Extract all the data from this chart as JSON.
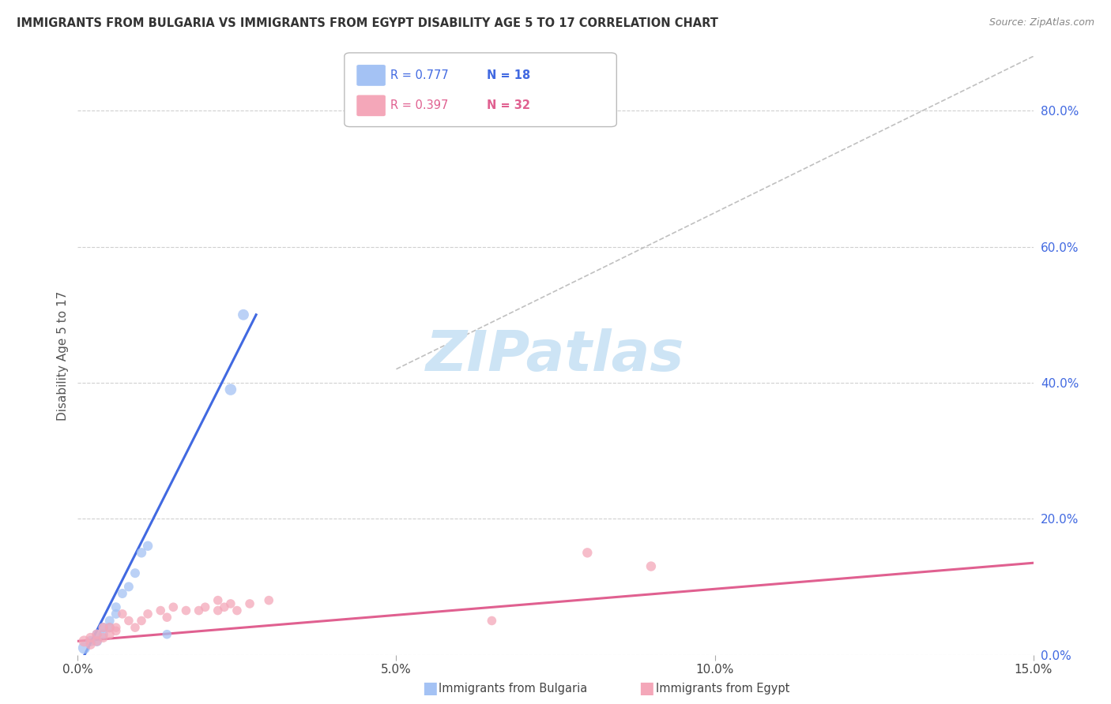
{
  "title": "IMMIGRANTS FROM BULGARIA VS IMMIGRANTS FROM EGYPT DISABILITY AGE 5 TO 17 CORRELATION CHART",
  "source": "Source: ZipAtlas.com",
  "ylabel": "Disability Age 5 to 17",
  "xlim": [
    0.0,
    0.15
  ],
  "ylim": [
    0.0,
    0.88
  ],
  "x_ticks": [
    0.0,
    0.05,
    0.1,
    0.15
  ],
  "x_tick_labels": [
    "0.0%",
    "5.0%",
    "10.0%",
    "15.0%"
  ],
  "y_ticks_right": [
    0.0,
    0.2,
    0.4,
    0.6,
    0.8
  ],
  "y_tick_labels_right": [
    "0.0%",
    "20.0%",
    "40.0%",
    "60.0%",
    "80.0%"
  ],
  "bulgaria_color": "#a4c2f4",
  "egypt_color": "#f4a7b9",
  "bulgaria_trend_color": "#4169e1",
  "egypt_trend_color": "#e06090",
  "diagonal_color": "#c0c0c0",
  "r_bulgaria": 0.777,
  "n_bulgaria": 18,
  "r_egypt": 0.397,
  "n_egypt": 32,
  "watermark": "ZIPatlas",
  "watermark_color": "#cde4f5",
  "bulgaria_points_x": [
    0.001,
    0.002,
    0.003,
    0.003,
    0.004,
    0.004,
    0.005,
    0.005,
    0.006,
    0.006,
    0.007,
    0.008,
    0.009,
    0.01,
    0.011,
    0.014,
    0.024,
    0.026
  ],
  "bulgaria_points_y": [
    0.01,
    0.02,
    0.02,
    0.03,
    0.03,
    0.04,
    0.04,
    0.05,
    0.06,
    0.07,
    0.09,
    0.1,
    0.12,
    0.15,
    0.16,
    0.03,
    0.39,
    0.5
  ],
  "bulgaria_sizes": [
    120,
    90,
    90,
    80,
    80,
    80,
    80,
    75,
    75,
    75,
    75,
    75,
    75,
    80,
    80,
    70,
    110,
    100
  ],
  "egypt_points_x": [
    0.001,
    0.002,
    0.002,
    0.003,
    0.003,
    0.004,
    0.004,
    0.005,
    0.005,
    0.006,
    0.006,
    0.007,
    0.008,
    0.009,
    0.01,
    0.011,
    0.013,
    0.014,
    0.015,
    0.017,
    0.019,
    0.02,
    0.022,
    0.022,
    0.023,
    0.024,
    0.025,
    0.027,
    0.03,
    0.065,
    0.08,
    0.09
  ],
  "egypt_points_y": [
    0.02,
    0.015,
    0.025,
    0.02,
    0.03,
    0.025,
    0.04,
    0.03,
    0.04,
    0.035,
    0.04,
    0.06,
    0.05,
    0.04,
    0.05,
    0.06,
    0.065,
    0.055,
    0.07,
    0.065,
    0.065,
    0.07,
    0.065,
    0.08,
    0.07,
    0.075,
    0.065,
    0.075,
    0.08,
    0.05,
    0.15,
    0.13
  ],
  "egypt_sizes": [
    100,
    80,
    80,
    80,
    80,
    75,
    75,
    75,
    75,
    70,
    70,
    70,
    70,
    70,
    70,
    70,
    70,
    70,
    70,
    70,
    70,
    70,
    70,
    70,
    70,
    70,
    70,
    70,
    70,
    70,
    80,
    80
  ],
  "blue_line_x": [
    0.0,
    0.028
  ],
  "blue_line_y": [
    -0.02,
    0.5
  ],
  "pink_line_x": [
    0.0,
    0.15
  ],
  "pink_line_y": [
    0.02,
    0.135
  ],
  "diag_line_x": [
    0.05,
    0.15
  ],
  "diag_line_y": [
    0.42,
    0.88
  ]
}
